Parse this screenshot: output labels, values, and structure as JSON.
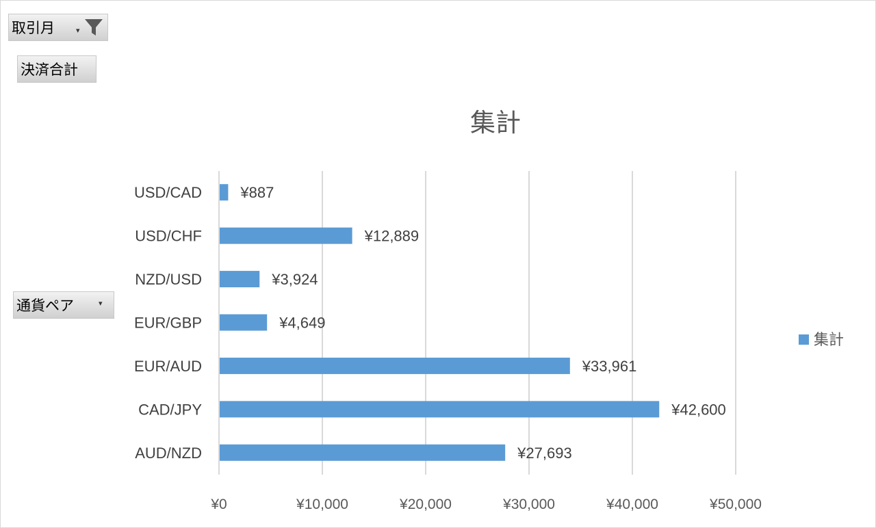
{
  "pivot_buttons": {
    "filter": "取引月",
    "values": "決済合計",
    "axis": "通貨ペア"
  },
  "colors": {
    "bar": "#5b9bd5",
    "grid": "#d9d9d9"
  },
  "chart_data": {
    "type": "bar",
    "orientation": "horizontal",
    "title": "集計",
    "categories": [
      "USD/CAD",
      "USD/CHF",
      "NZD/USD",
      "EUR/GBP",
      "EUR/AUD",
      "CAD/JPY",
      "AUD/NZD"
    ],
    "series": [
      {
        "name": "集計",
        "values": [
          887,
          12889,
          3924,
          4649,
          33961,
          42600,
          27693
        ]
      }
    ],
    "data_labels": [
      "¥887",
      "¥12,889",
      "¥3,924",
      "¥4,649",
      "¥33,961",
      "¥42,600",
      "¥27,693"
    ],
    "xlim": [
      0,
      50000
    ],
    "xticks": [
      0,
      10000,
      20000,
      30000,
      40000,
      50000
    ],
    "xtick_labels": [
      "¥0",
      "¥10,000",
      "¥20,000",
      "¥30,000",
      "¥40,000",
      "¥50,000"
    ],
    "grid": true,
    "legend": "right"
  }
}
